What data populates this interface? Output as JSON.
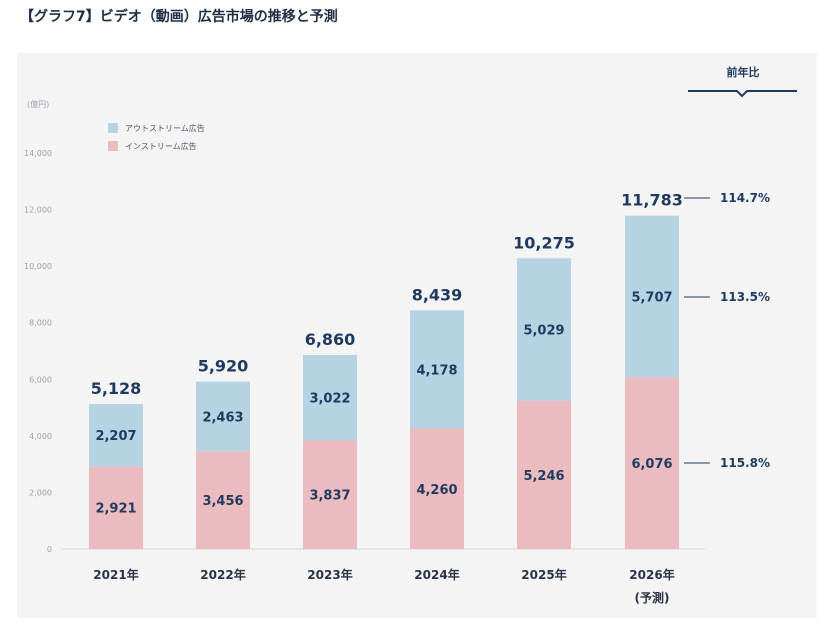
{
  "heading": "【グラフ7】ビデオ（動画）広告市場の推移と予測",
  "unit_label": "(億円)",
  "yoy_header": "前年比",
  "chart_data": {
    "type": "bar",
    "stacked": true,
    "categories": [
      "2021年",
      "2022年",
      "2023年",
      "2024年",
      "2025年",
      "2026年"
    ],
    "category_sublabels": [
      "",
      "",
      "",
      "",
      "",
      "(予測)"
    ],
    "series": [
      {
        "name": "インストリーム広告",
        "values": [
          2921,
          3456,
          3837,
          4260,
          5246,
          6076
        ],
        "color": "#ebbbbf"
      },
      {
        "name": "アウトストリーム広告",
        "values": [
          2207,
          2463,
          3022,
          4178,
          5029,
          5707
        ],
        "color": "#b6d3e4"
      }
    ],
    "totals": [
      5128,
      5920,
      6860,
      8439,
      10275,
      11783
    ],
    "value_labels": {
      "instream": [
        "2,921",
        "3,456",
        "3,837",
        "4,260",
        "5,246",
        "6,076"
      ],
      "outstream": [
        "2,207",
        "2,463",
        "3,022",
        "4,178",
        "5,029",
        "5,707"
      ],
      "totals": [
        "5,128",
        "5,920",
        "6,860",
        "8,439",
        "10,275",
        "11,783"
      ]
    },
    "yoy": {
      "total": "114.7%",
      "outstream": "113.5%",
      "instream": "115.8%"
    },
    "ylim": [
      0,
      14000
    ],
    "yticks": [
      0,
      2000,
      4000,
      6000,
      8000,
      10000,
      12000,
      14000
    ],
    "ytick_labels": [
      "0",
      "2,000",
      "4,000",
      "6,000",
      "8,000",
      "10,000",
      "12,000",
      "14,000"
    ],
    "legend": [
      "アウトストリーム広告",
      "インストリーム広告"
    ],
    "legend_position": "top-left",
    "grid": false,
    "yoy_line_color": "#1f3a5f"
  }
}
